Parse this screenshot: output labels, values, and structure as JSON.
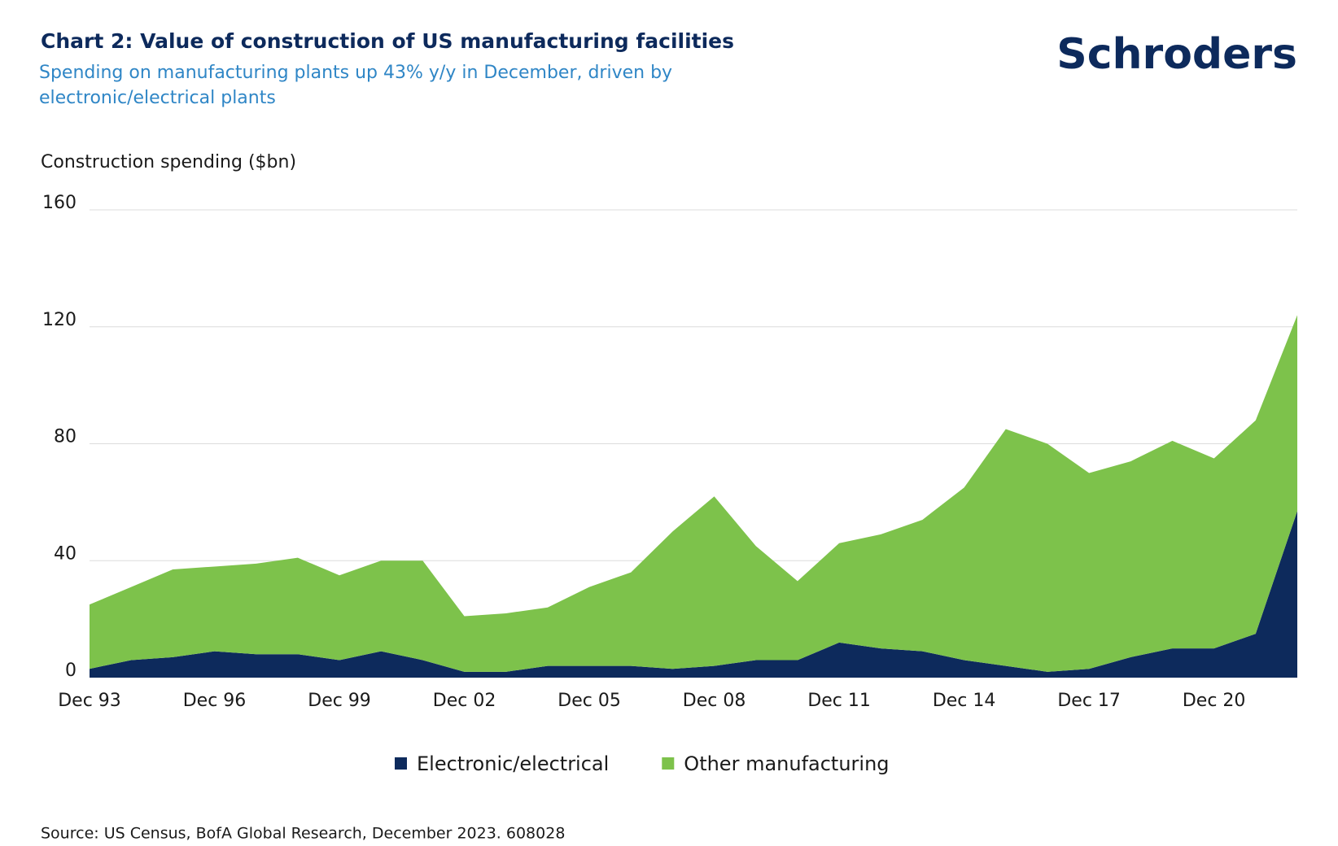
{
  "chart_data": {
    "type": "stacked_area",
    "title": "Chart 2: Value of construction of US manufacturing facilities",
    "subtitle": "Spending on manufacturing plants up 43% y/y in December, driven by electronic/electrical plants",
    "brand": "Schroders",
    "y_axis_label": "Construction spending ($bn)",
    "source": "Source: US Census, BofA Global Research, December 2023. 608028",
    "categories": [
      "Dec 93",
      null,
      null,
      "Dec 96",
      null,
      null,
      "Dec 99",
      null,
      null,
      "Dec 02",
      null,
      null,
      "Dec 05",
      null,
      null,
      "Dec 08",
      null,
      null,
      "Dec 11",
      null,
      null,
      "Dec 14",
      null,
      null,
      "Dec 17",
      null,
      null,
      "Dec 20",
      null,
      null
    ],
    "series": [
      {
        "name": "Electronic/electrical",
        "color": "#0d2a5c",
        "values": [
          3,
          6,
          7,
          9,
          8,
          8,
          6,
          9,
          6,
          2,
          2,
          4,
          4,
          4,
          3,
          4,
          6,
          6,
          12,
          10,
          9,
          6,
          4,
          2,
          3,
          7,
          10,
          10,
          15,
          57
        ]
      },
      {
        "name": "Other manufacturing",
        "color": "#7dc24b",
        "values": [
          22,
          25,
          30,
          29,
          31,
          33,
          29,
          31,
          34,
          19,
          20,
          20,
          27,
          32,
          47,
          58,
          39,
          27,
          34,
          39,
          45,
          59,
          81,
          78,
          67,
          67,
          71,
          65,
          73,
          67
        ]
      }
    ],
    "ylim": [
      0,
      160
    ],
    "yticks": [
      0,
      40,
      80,
      120,
      160
    ],
    "grid": true,
    "legend": "bottom"
  }
}
